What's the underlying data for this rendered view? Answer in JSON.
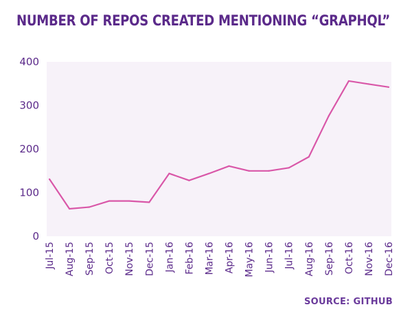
{
  "page": {
    "title": "NUMBER OF REPOS CREATED MENTIONING “GRAPHQL”",
    "source": "SOURCE: GITHUB"
  },
  "colors": {
    "title": "#5b2a8a",
    "plot_background": "#f7f2f9",
    "line": "#d957a8",
    "axis_text": "#5b2a8a"
  },
  "chart_data": {
    "type": "line",
    "title": "NUMBER OF REPOS CREATED MENTIONING “GRAPHQL”",
    "xlabel": "",
    "ylabel": "",
    "categories": [
      "Jul-15",
      "Aug-15",
      "Sep-15",
      "Oct-15",
      "Nov-15",
      "Dec-15",
      "Jan-16",
      "Feb-16",
      "Mar-16",
      "Apr-16",
      "May-16",
      "Jun-16",
      "Jul-16",
      "Aug-16",
      "Sep-16",
      "Oct-16",
      "Nov-16",
      "Dec-16"
    ],
    "values": [
      131,
      63,
      67,
      81,
      81,
      78,
      144,
      128,
      144,
      161,
      150,
      150,
      157,
      182,
      276,
      356,
      349,
      342
    ],
    "ylim": [
      0,
      400
    ],
    "yticks": [
      0,
      100,
      200,
      300,
      400
    ],
    "grid": false,
    "legend": "none"
  }
}
